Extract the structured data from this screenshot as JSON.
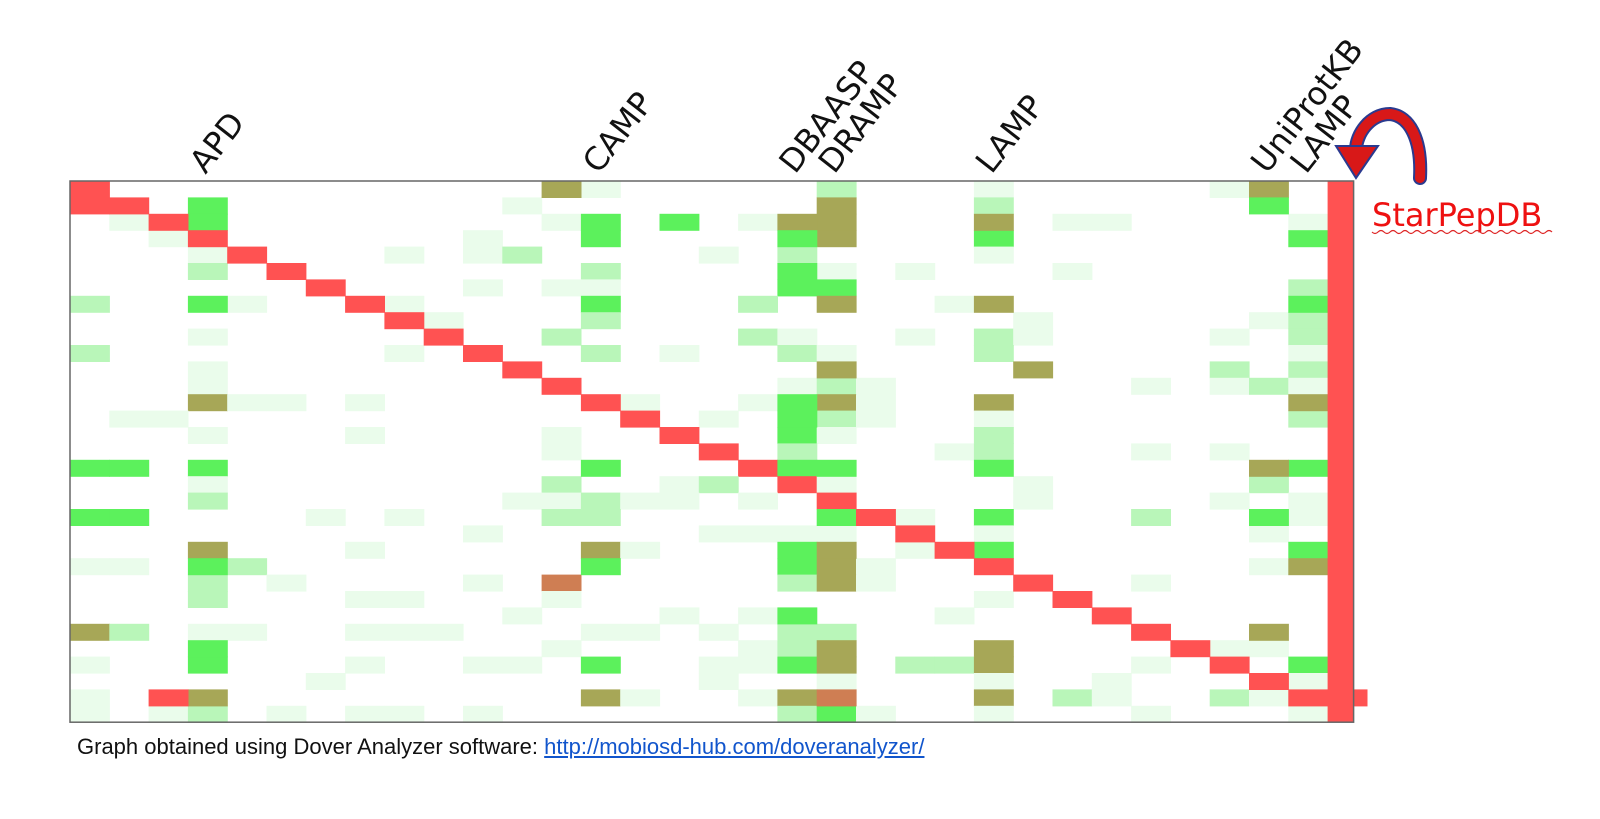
{
  "chart_data": {
    "type": "heatmap",
    "title": "",
    "column_labels": [
      {
        "label": "APD",
        "col": 3
      },
      {
        "label": "CAMP",
        "col": 13
      },
      {
        "label": "DBAASP",
        "col": 18
      },
      {
        "label": "DRAMP",
        "col": 19
      },
      {
        "label": "LAMP",
        "col": 23
      },
      {
        "label": "UniProtKB",
        "col": 30
      },
      {
        "label": "LAMP",
        "col": 31
      }
    ],
    "target_label": "StarPepDB",
    "n_rows": 33,
    "n_cols": 33,
    "diagonal": [
      [
        0,
        0
      ],
      [
        0,
        1
      ],
      [
        1,
        1
      ],
      [
        2,
        2
      ],
      [
        3,
        3
      ],
      [
        4,
        4
      ],
      [
        5,
        5
      ],
      [
        6,
        6
      ],
      [
        7,
        7
      ],
      [
        8,
        8
      ],
      [
        9,
        9
      ],
      [
        10,
        10
      ],
      [
        11,
        11
      ],
      [
        12,
        12
      ],
      [
        13,
        13
      ],
      [
        14,
        14
      ],
      [
        15,
        15
      ],
      [
        16,
        16
      ],
      [
        17,
        17
      ],
      [
        18,
        18
      ],
      [
        19,
        19
      ],
      [
        20,
        20
      ],
      [
        21,
        21
      ],
      [
        22,
        22
      ],
      [
        23,
        23
      ],
      [
        24,
        24
      ],
      [
        25,
        25
      ],
      [
        26,
        26
      ],
      [
        27,
        27
      ],
      [
        28,
        28
      ],
      [
        29,
        29
      ],
      [
        30,
        30
      ],
      [
        31,
        31
      ],
      [
        2,
        31
      ],
      [
        32,
        31
      ]
    ],
    "last_column_full": true,
    "strong_cells": [
      [
        12,
        0,
        "o"
      ],
      [
        30,
        0,
        "o"
      ],
      [
        19,
        1,
        "o"
      ],
      [
        30,
        1,
        "g"
      ],
      [
        3,
        1,
        "g"
      ],
      [
        0,
        1,
        "g"
      ],
      [
        18,
        2,
        "o"
      ],
      [
        19,
        2,
        "o"
      ],
      [
        15,
        2,
        "g"
      ],
      [
        23,
        2,
        "o"
      ],
      [
        3,
        2,
        "g"
      ],
      [
        13,
        2,
        "g"
      ],
      [
        18,
        3,
        "g"
      ],
      [
        19,
        3,
        "o"
      ],
      [
        23,
        3,
        "g"
      ],
      [
        13,
        3,
        "g"
      ],
      [
        31,
        3,
        "g"
      ],
      [
        18,
        5,
        "g"
      ],
      [
        19,
        6,
        "g"
      ],
      [
        18,
        6,
        "g"
      ],
      [
        19,
        7,
        "o"
      ],
      [
        3,
        7,
        "g"
      ],
      [
        13,
        7,
        "g"
      ],
      [
        23,
        7,
        "o"
      ],
      [
        31,
        7,
        "g"
      ],
      [
        19,
        11,
        "o"
      ],
      [
        24,
        11,
        "o"
      ],
      [
        3,
        13,
        "o"
      ],
      [
        18,
        13,
        "g"
      ],
      [
        19,
        13,
        "o"
      ],
      [
        23,
        13,
        "o"
      ],
      [
        31,
        13,
        "o"
      ],
      [
        18,
        14,
        "g"
      ],
      [
        18,
        15,
        "g"
      ],
      [
        0,
        17,
        "g"
      ],
      [
        1,
        17,
        "g"
      ],
      [
        3,
        17,
        "g"
      ],
      [
        13,
        17,
        "g"
      ],
      [
        18,
        17,
        "g"
      ],
      [
        19,
        17,
        "g"
      ],
      [
        23,
        17,
        "g"
      ],
      [
        30,
        17,
        "o"
      ],
      [
        31,
        17,
        "g"
      ],
      [
        0,
        20,
        "g"
      ],
      [
        1,
        20,
        "g"
      ],
      [
        19,
        20,
        "g"
      ],
      [
        23,
        20,
        "g"
      ],
      [
        30,
        20,
        "g"
      ],
      [
        3,
        22,
        "o"
      ],
      [
        13,
        22,
        "o"
      ],
      [
        18,
        22,
        "g"
      ],
      [
        19,
        22,
        "o"
      ],
      [
        23,
        22,
        "g"
      ],
      [
        31,
        22,
        "g"
      ],
      [
        3,
        23,
        "g"
      ],
      [
        13,
        23,
        "g"
      ],
      [
        18,
        23,
        "g"
      ],
      [
        19,
        23,
        "o"
      ],
      [
        31,
        23,
        "o"
      ],
      [
        12,
        24,
        "r"
      ],
      [
        19,
        24,
        "o"
      ],
      [
        18,
        26,
        "g"
      ],
      [
        0,
        27,
        "o"
      ],
      [
        30,
        27,
        "o"
      ],
      [
        3,
        28,
        "g"
      ],
      [
        19,
        28,
        "o"
      ],
      [
        23,
        28,
        "o"
      ],
      [
        3,
        29,
        "g"
      ],
      [
        13,
        29,
        "g"
      ],
      [
        18,
        29,
        "g"
      ],
      [
        19,
        29,
        "o"
      ],
      [
        23,
        29,
        "o"
      ],
      [
        31,
        29,
        "g"
      ],
      [
        3,
        31,
        "o"
      ],
      [
        13,
        31,
        "o"
      ],
      [
        18,
        31,
        "o"
      ],
      [
        19,
        31,
        "r"
      ],
      [
        23,
        31,
        "o"
      ],
      [
        19,
        32,
        "g"
      ]
    ],
    "colors": {
      "diagonal": "#ff5252",
      "green_strong": "#5cf15c",
      "olive": "#a7a757",
      "orange_brown": "#cf7e53",
      "light_green": "#b9f6b9",
      "faint_green": "#eafceb",
      "border": "#666666",
      "arrow": "#d81818",
      "arrow_outline": "#2a3a8f",
      "label_red": "#ee1111"
    }
  },
  "caption": {
    "text": "Graph obtained using Dover Analyzer software: ",
    "link": "http://mobiosd-hub.com/doveranalyzer/"
  }
}
